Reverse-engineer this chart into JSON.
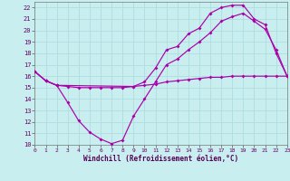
{
  "xlabel": "Windchill (Refroidissement éolien,°C)",
  "bg_color": "#c8eef0",
  "grid_color": "#b0dddd",
  "line_color": "#aa00aa",
  "xlim": [
    0,
    23
  ],
  "ylim": [
    10,
    22.5
  ],
  "xticks": [
    0,
    1,
    2,
    3,
    4,
    5,
    6,
    7,
    8,
    9,
    10,
    11,
    12,
    13,
    14,
    15,
    16,
    17,
    18,
    19,
    20,
    21,
    22,
    23
  ],
  "yticks": [
    10,
    11,
    12,
    13,
    14,
    15,
    16,
    17,
    18,
    19,
    20,
    21,
    22
  ],
  "line1_x": [
    0,
    1,
    2,
    3,
    4,
    5,
    6,
    7,
    8,
    9,
    10,
    11,
    12,
    13,
    14,
    15,
    16,
    17,
    18,
    19,
    20,
    21,
    22,
    23
  ],
  "line1_y": [
    16.4,
    15.6,
    15.2,
    15.1,
    15.0,
    15.0,
    15.0,
    15.0,
    15.0,
    15.1,
    15.2,
    15.3,
    15.5,
    15.6,
    15.7,
    15.8,
    15.9,
    15.9,
    16.0,
    16.0,
    16.0,
    16.0,
    16.0,
    16.0
  ],
  "line2_x": [
    0,
    1,
    2,
    3,
    4,
    5,
    6,
    7,
    8,
    9,
    10,
    11,
    12,
    13,
    14,
    15,
    16,
    17,
    18,
    19,
    20,
    21,
    22,
    23
  ],
  "line2_y": [
    16.4,
    15.6,
    15.2,
    13.7,
    12.1,
    11.1,
    10.5,
    10.1,
    10.4,
    12.5,
    14.0,
    15.5,
    17.0,
    17.5,
    18.3,
    19.0,
    19.8,
    20.8,
    21.2,
    21.5,
    20.8,
    20.1,
    18.3,
    16.0
  ],
  "line3_x": [
    0,
    1,
    2,
    9,
    10,
    11,
    12,
    13,
    14,
    15,
    16,
    17,
    18,
    19,
    20,
    21,
    22,
    23
  ],
  "line3_y": [
    16.4,
    15.6,
    15.2,
    15.1,
    15.5,
    16.7,
    18.3,
    18.6,
    19.7,
    20.2,
    21.5,
    22.0,
    22.2,
    22.2,
    21.0,
    20.5,
    18.0,
    16.0
  ]
}
